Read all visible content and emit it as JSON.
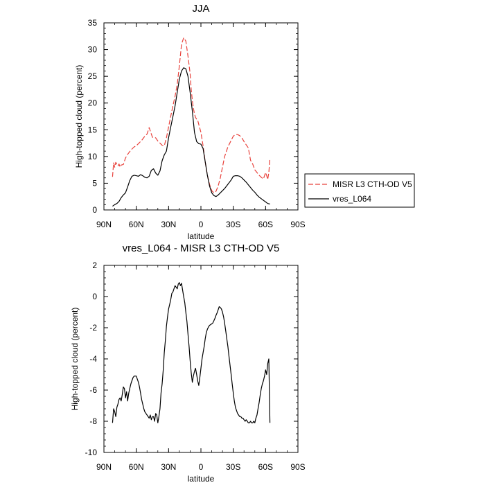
{
  "chart_data": [
    {
      "type": "line",
      "title": "JJA",
      "xlabel": "latitude",
      "ylabel": "High-topped cloud (percent)",
      "xlim": [
        90,
        -90
      ],
      "ylim": [
        0,
        35
      ],
      "x_tick_values": [
        90,
        60,
        30,
        0,
        -30,
        -60,
        -90
      ],
      "x_ticks": [
        "90N",
        "60N",
        "30N",
        "0",
        "30S",
        "60S",
        "90S"
      ],
      "y_tick_values": [
        0,
        5,
        10,
        15,
        20,
        25,
        30,
        35
      ],
      "y_ticks": [
        "0",
        "5",
        "10",
        "15",
        "20",
        "25",
        "30",
        "35"
      ],
      "legend_position": "right",
      "series": [
        {
          "name": "MISR L3 CTH-OD V5",
          "color": "#e8413b",
          "dash": "dashed",
          "x": [
            82,
            81,
            80,
            79,
            78,
            77,
            76,
            75,
            74,
            72,
            70,
            68,
            65,
            62,
            60,
            58,
            55,
            52,
            50,
            48,
            45,
            42,
            40,
            38,
            36,
            34,
            32,
            30,
            28,
            26,
            24,
            22,
            20,
            18,
            16,
            14,
            12,
            10,
            9,
            8,
            7,
            6,
            5,
            4,
            3,
            2,
            0,
            -2,
            -4,
            -6,
            -8,
            -10,
            -12,
            -14,
            -16,
            -18,
            -20,
            -22,
            -25,
            -28,
            -30,
            -32,
            -34,
            -36,
            -38,
            -40,
            -42,
            -44,
            -46,
            -48,
            -50,
            -52,
            -54,
            -56,
            -58,
            -60,
            -61,
            -62,
            -63,
            -64
          ],
          "y": [
            6.2,
            8.8,
            8.0,
            8.9,
            8.5,
            8.2,
            8.6,
            8.0,
            8.4,
            8.5,
            9.7,
            10.4,
            11.2,
            11.8,
            12.0,
            12.4,
            13.0,
            13.8,
            14.2,
            15.4,
            13.6,
            13.5,
            12.9,
            12.5,
            12.1,
            12.0,
            13.5,
            15.5,
            17.5,
            19.5,
            21.3,
            23.5,
            27.0,
            31.0,
            32.2,
            31.6,
            28.8,
            25.5,
            22.5,
            20.5,
            19.0,
            18.0,
            17.3,
            17.0,
            16.8,
            16.0,
            14.5,
            12.0,
            9.0,
            6.5,
            4.8,
            3.6,
            3.2,
            3.5,
            4.5,
            6.0,
            8.0,
            10.0,
            11.8,
            13.0,
            13.8,
            14.1,
            14.1,
            13.9,
            13.5,
            12.8,
            12.2,
            11.6,
            9.3,
            8.6,
            7.5,
            7.0,
            6.5,
            6.1,
            5.8,
            7.0,
            6.4,
            5.7,
            7.0,
            9.6
          ]
        },
        {
          "name": "vres_L064",
          "color": "#000000",
          "dash": "solid",
          "x": [
            82,
            80,
            78,
            76,
            74,
            72,
            70,
            68,
            66,
            64,
            62,
            60,
            58,
            56,
            54,
            52,
            50,
            48,
            46,
            44,
            42,
            40,
            38,
            36,
            34,
            32,
            30,
            28,
            26,
            24,
            22,
            20,
            18,
            16,
            14,
            12,
            10,
            8,
            6,
            4,
            2,
            0,
            -2,
            -4,
            -6,
            -8,
            -10,
            -12,
            -14,
            -16,
            -18,
            -20,
            -22,
            -25,
            -28,
            -30,
            -32,
            -34,
            -36,
            -38,
            -40,
            -42,
            -44,
            -46,
            -48,
            -50,
            -52,
            -54,
            -56,
            -58,
            -60,
            -62,
            -64
          ],
          "y": [
            0.7,
            1.0,
            1.2,
            1.6,
            2.3,
            2.8,
            3.2,
            4.3,
            5.5,
            6.3,
            6.5,
            6.4,
            6.3,
            6.6,
            6.4,
            6.1,
            6.0,
            6.3,
            7.4,
            7.7,
            6.9,
            6.5,
            7.3,
            9.2,
            10.3,
            11.0,
            13.5,
            15.5,
            17.5,
            19.5,
            22.0,
            24.5,
            26.0,
            26.6,
            26.4,
            25.0,
            22.0,
            18.5,
            14.5,
            12.8,
            12.4,
            12.3,
            11.5,
            9.0,
            6.5,
            4.5,
            3.2,
            2.7,
            2.5,
            2.8,
            3.2,
            3.6,
            4.0,
            4.8,
            5.6,
            6.3,
            6.4,
            6.4,
            6.3,
            6.0,
            5.6,
            5.2,
            4.7,
            4.2,
            3.7,
            3.3,
            2.8,
            2.4,
            2.1,
            1.8,
            1.5,
            1.2,
            1.1
          ]
        }
      ]
    },
    {
      "type": "line",
      "title": "vres_L064 - MISR L3 CTH-OD V5",
      "xlabel": "latitude",
      "ylabel": "High-topped cloud (percent)",
      "xlim": [
        90,
        -90
      ],
      "ylim": [
        -10,
        2
      ],
      "x_tick_values": [
        90,
        60,
        30,
        0,
        -30,
        -60,
        -90
      ],
      "x_ticks": [
        "90N",
        "60N",
        "30N",
        "0",
        "30S",
        "60S",
        "90S"
      ],
      "y_tick_values": [
        -10,
        -8,
        -6,
        -4,
        -2,
        0,
        2
      ],
      "y_ticks": [
        "-10",
        "-8",
        "-6",
        "-4",
        "-2",
        "0",
        "2"
      ],
      "series": [
        {
          "name": "vres_L064 - MISR L3 CTH-OD V5",
          "color": "#000000",
          "dash": "solid",
          "x": [
            82,
            81,
            80,
            79,
            78,
            77,
            76,
            75,
            74,
            73,
            72,
            71,
            70,
            69,
            68,
            67,
            66,
            65,
            64,
            63,
            62,
            61,
            60,
            59,
            58,
            57,
            56,
            55,
            54,
            53,
            52,
            51,
            50,
            49,
            48,
            47,
            46,
            45,
            44,
            43,
            42,
            41,
            40,
            39,
            38,
            37,
            36,
            35,
            34,
            33,
            32,
            31,
            30,
            29,
            28,
            27,
            26,
            25,
            24,
            23,
            22,
            21,
            20,
            19,
            18,
            17,
            16,
            15,
            14,
            13,
            12,
            11,
            10,
            9,
            8,
            7,
            6,
            5,
            4,
            3,
            2,
            1,
            0,
            -1,
            -2,
            -3,
            -4,
            -5,
            -6,
            -7,
            -8,
            -9,
            -10,
            -11,
            -12,
            -13,
            -14,
            -15,
            -16,
            -17,
            -18,
            -19,
            -20,
            -21,
            -22,
            -23,
            -24,
            -25,
            -26,
            -27,
            -28,
            -29,
            -30,
            -31,
            -32,
            -33,
            -34,
            -35,
            -36,
            -37,
            -38,
            -39,
            -40,
            -41,
            -42,
            -43,
            -44,
            -45,
            -46,
            -47,
            -48,
            -49,
            -50,
            -51,
            -52,
            -53,
            -54,
            -55,
            -56,
            -57,
            -58,
            -59,
            -60,
            -61,
            -62,
            -63,
            -64
          ],
          "y": [
            -8.1,
            -7.2,
            -7.4,
            -7.7,
            -7.1,
            -6.9,
            -6.6,
            -6.5,
            -6.7,
            -6.3,
            -5.8,
            -5.9,
            -6.5,
            -6.1,
            -6.7,
            -6.2,
            -5.9,
            -5.6,
            -5.4,
            -5.2,
            -5.1,
            -5.1,
            -5.1,
            -5.3,
            -5.5,
            -5.8,
            -6.2,
            -6.6,
            -6.9,
            -7.2,
            -7.4,
            -7.5,
            -7.6,
            -7.7,
            -7.8,
            -7.6,
            -7.9,
            -7.7,
            -7.7,
            -8.0,
            -7.5,
            -7.6,
            -8.1,
            -7.7,
            -7.2,
            -6.2,
            -5.6,
            -4.7,
            -3.6,
            -2.8,
            -1.9,
            -1.3,
            -0.8,
            -0.5,
            -0.2,
            0.2,
            0.3,
            0.5,
            0.7,
            0.6,
            0.5,
            0.8,
            0.9,
            0.7,
            0.85,
            0.4,
            0.0,
            -0.4,
            -1.0,
            -1.6,
            -2.4,
            -3.2,
            -4.1,
            -4.9,
            -5.5,
            -5.1,
            -4.8,
            -4.6,
            -5.0,
            -5.4,
            -5.7,
            -5.2,
            -4.6,
            -4.0,
            -3.6,
            -3.2,
            -2.7,
            -2.3,
            -2.1,
            -1.95,
            -1.85,
            -1.8,
            -1.75,
            -1.7,
            -1.55,
            -1.4,
            -1.2,
            -1.05,
            -0.85,
            -0.65,
            -0.7,
            -0.8,
            -1.0,
            -1.3,
            -1.7,
            -2.2,
            -2.7,
            -3.2,
            -3.8,
            -4.4,
            -5.0,
            -5.6,
            -6.2,
            -6.7,
            -7.1,
            -7.3,
            -7.5,
            -7.6,
            -7.7,
            -7.7,
            -7.8,
            -7.8,
            -7.9,
            -8.0,
            -7.9,
            -8.0,
            -8.1,
            -8.1,
            -8.0,
            -8.1,
            -8.1,
            -8.0,
            -8.1,
            -7.8,
            -7.6,
            -7.2,
            -6.8,
            -6.3,
            -5.9,
            -5.6,
            -5.4,
            -5.1,
            -4.7,
            -5.0,
            -4.3,
            -4.0,
            -8.1
          ]
        }
      ]
    }
  ]
}
